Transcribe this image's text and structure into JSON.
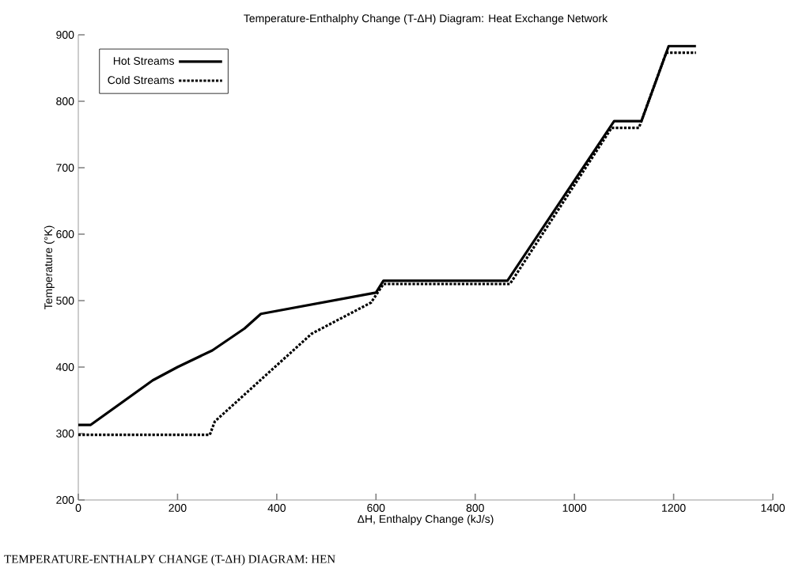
{
  "chart_data": {
    "type": "line",
    "title": "Temperature-Enthalphy Change (T-ΔH) Diagram: Heat Exchange Network",
    "xlabel": "ΔH, Enthalpy Change (kJ/s)",
    "ylabel": "Temperature (°K)",
    "annotations": [
      "TEMPERATURE-ENTHALPY CHANGE (T-ΔH) DIAGRAM: HEN"
    ],
    "xlim": [
      0,
      1400
    ],
    "xticks": [
      0,
      200,
      400,
      600,
      800,
      1000,
      1200,
      1400
    ],
    "ylim": [
      200,
      900
    ],
    "yticks": [
      200,
      300,
      400,
      500,
      600,
      700,
      800,
      900
    ],
    "grid": false,
    "legend": "top left",
    "marker": "none",
    "series": [
      {
        "name": "Hot Streams",
        "color": "#000000",
        "line_style": "solid",
        "x": [
          0,
          25,
          150,
          200,
          270,
          335,
          368,
          600,
          615,
          865,
          1080,
          1135,
          1190,
          1245
        ],
        "values": [
          313,
          313,
          380,
          400,
          425,
          458,
          480,
          512,
          530,
          530,
          770,
          770,
          883,
          883
        ]
      },
      {
        "name": "Cold Streams",
        "color": "#000000",
        "line_style": "dotted",
        "x": [
          0,
          265,
          275,
          470,
          590,
          615,
          870,
          1075,
          1130,
          1185,
          1245
        ],
        "values": [
          298,
          298,
          318,
          450,
          497,
          525,
          525,
          760,
          760,
          873,
          873
        ]
      }
    ]
  }
}
